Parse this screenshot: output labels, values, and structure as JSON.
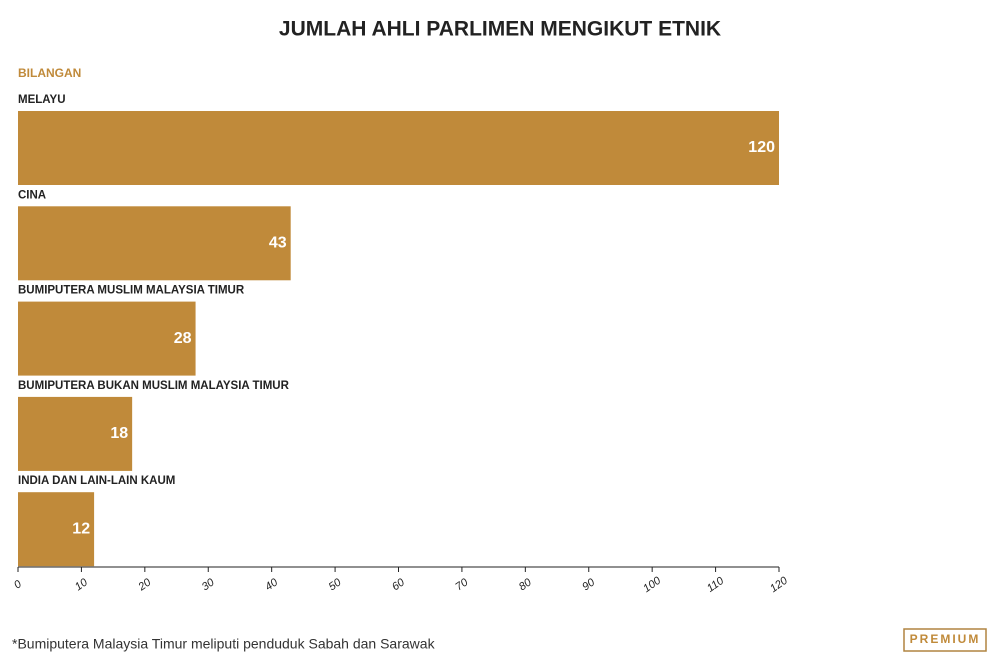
{
  "chart_data": {
    "type": "bar",
    "orientation": "horizontal",
    "title": "JUMLAH AHLI PARLIMEN MENGIKUT ETNIK",
    "xlabel": "BILANGAN",
    "categories": [
      "MELAYU",
      "CINA",
      "BUMIPUTERA MUSLIM MALAYSIA TIMUR",
      "BUMIPUTERA BUKAN MUSLIM MALAYSIA TIMUR",
      "INDIA DAN LAIN-LAIN KAUM"
    ],
    "values": [
      120,
      43,
      28,
      18,
      12
    ],
    "color": "#c08a3a",
    "xlim": [
      0,
      120
    ],
    "xticks": [
      0,
      10,
      20,
      30,
      40,
      50,
      60,
      70,
      80,
      90,
      100,
      110,
      120
    ],
    "grid": false,
    "note": "*Bumiputera Malaysia Timur meliputi penduduk Sabah dan Sarawak",
    "logo": "PREMIUM"
  }
}
